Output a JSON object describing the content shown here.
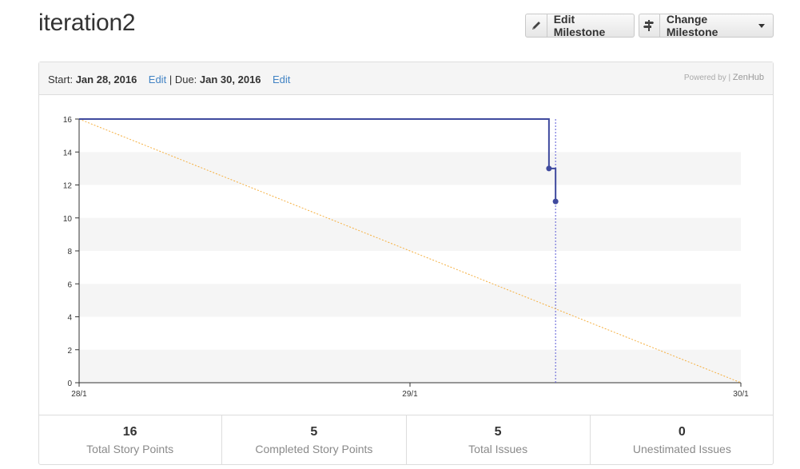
{
  "page": {
    "title": "iteration2"
  },
  "toolbar": {
    "edit_label": "Edit Milestone",
    "change_label": "Change Milestone"
  },
  "header": {
    "start_label": "Start:",
    "start_date": "Jan 28, 2016",
    "edit_link": "Edit",
    "separator": "|",
    "due_label": "Due:",
    "due_date": "Jan 30, 2016",
    "edit_link_2": "Edit",
    "powered_by": "Powered by |",
    "brand": "ZenHub"
  },
  "chart_data": {
    "type": "line",
    "categories": [
      "28/1",
      "29/1",
      "30/1"
    ],
    "x_range": [
      0,
      2
    ],
    "ylim": [
      0,
      16
    ],
    "yticks": [
      0,
      2,
      4,
      6,
      8,
      10,
      12,
      14,
      16
    ],
    "grid": "alternating horizontal bands",
    "series": [
      {
        "style": "ideal",
        "color": "#f5b041",
        "dashed": true,
        "points": [
          [
            0,
            16
          ],
          [
            2,
            0
          ]
        ]
      },
      {
        "style": "actual",
        "color": "#3f4a9e",
        "dashed": false,
        "points": [
          [
            0,
            16
          ],
          [
            1.42,
            16
          ],
          [
            1.42,
            13
          ],
          [
            1.44,
            13
          ],
          [
            1.44,
            11
          ]
        ],
        "markers": [
          [
            1.42,
            13
          ],
          [
            1.44,
            11
          ]
        ]
      }
    ],
    "today_line_x": 1.44,
    "today_line_color": "#5b5bd6"
  },
  "stats": [
    {
      "value": "16",
      "label": "Total Story Points"
    },
    {
      "value": "5",
      "label": "Completed Story Points"
    },
    {
      "value": "5",
      "label": "Total Issues"
    },
    {
      "value": "0",
      "label": "Unestimated Issues"
    }
  ]
}
